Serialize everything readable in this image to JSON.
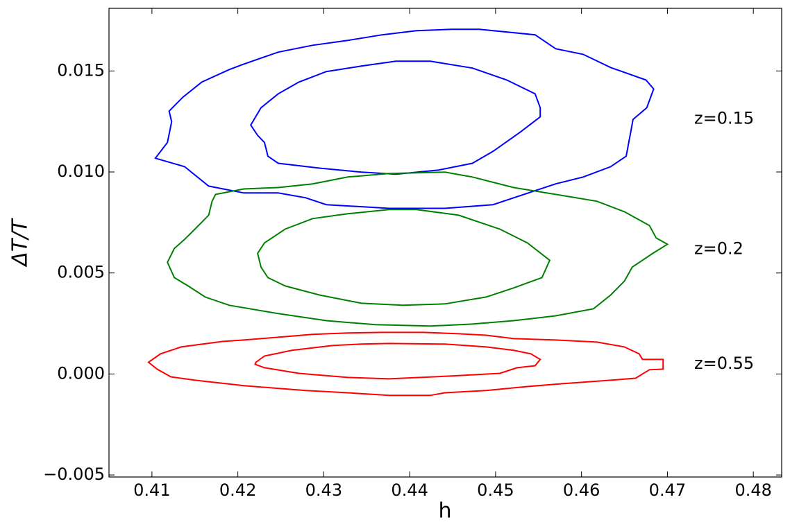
{
  "chart_data": {
    "type": "contour",
    "xlabel": "h",
    "ylabel": "ΔT/T",
    "xlim": [
      0.405,
      0.4833
    ],
    "ylim": [
      -0.0051,
      0.0181
    ],
    "xticks": [
      0.41,
      0.42,
      0.43,
      0.44,
      0.45,
      0.46,
      0.47,
      0.48
    ],
    "yticks": [
      {
        "value": -0.005,
        "label": "−0.005"
      },
      {
        "value": 0,
        "label": "0.000"
      },
      0.005,
      {
        "value": 0.01,
        "label": "0.010"
      },
      0.015
    ],
    "series": [
      {
        "name": "z=0.15",
        "color": "#0000ff",
        "contours": [
          {
            "x": [
              0.4104,
              0.4118,
              0.4123,
              0.412,
              0.4136,
              0.4158,
              0.419,
              0.4207,
              0.4247,
              0.4287,
              0.4328,
              0.4368,
              0.4408,
              0.4449,
              0.4481,
              0.4546,
              0.457,
              0.4602,
              0.4634,
              0.4675,
              0.4684,
              0.4676,
              0.466,
              0.4657,
              0.4652,
              0.4634,
              0.4602,
              0.457,
              0.4521,
              0.4497,
              0.4441,
              0.4376,
              0.4303,
              0.4279,
              0.4247,
              0.4207,
              0.4166,
              0.4138
            ],
            "y": [
              0.01068,
              0.01146,
              0.01249,
              0.01301,
              0.0137,
              0.01445,
              0.01507,
              0.01534,
              0.01593,
              0.01627,
              0.01651,
              0.01679,
              0.01699,
              0.01706,
              0.01706,
              0.01679,
              0.0161,
              0.01582,
              0.01517,
              0.01455,
              0.01411,
              0.01318,
              0.0126,
              0.01191,
              0.01078,
              0.01026,
              0.00975,
              0.00941,
              0.00872,
              0.00838,
              0.0082,
              0.0082,
              0.00838,
              0.00872,
              0.00896,
              0.00896,
              0.0093,
              0.01026
            ]
          },
          {
            "x": [
              0.4215,
              0.4227,
              0.4247,
              0.4271,
              0.4303,
              0.4344,
              0.4384,
              0.4424,
              0.4473,
              0.4513,
              0.4546,
              0.4552,
              0.4552,
              0.4529,
              0.4497,
              0.4473,
              0.4433,
              0.4384,
              0.4344,
              0.4295,
              0.4247,
              0.4235,
              0.4231,
              0.4223
            ],
            "y": [
              0.01232,
              0.01318,
              0.01387,
              0.01445,
              0.01497,
              0.01524,
              0.01548,
              0.01548,
              0.01514,
              0.01455,
              0.01387,
              0.01318,
              0.01273,
              0.01198,
              0.01102,
              0.01043,
              0.01009,
              0.00989,
              0.00999,
              0.01019,
              0.01043,
              0.01078,
              0.01146,
              0.01181
            ]
          }
        ]
      },
      {
        "name": "z=0.2",
        "color": "#008000",
        "contours": [
          {
            "x": [
              0.4118,
              0.4126,
              0.4138,
              0.415,
              0.4166,
              0.417,
              0.4174,
              0.4207,
              0.4247,
              0.4287,
              0.4328,
              0.4376,
              0.4441,
              0.4473,
              0.4521,
              0.457,
              0.4618,
              0.465,
              0.4679,
              0.4687,
              0.47,
              0.4683,
              0.4659,
              0.465,
              0.4634,
              0.4614,
              0.457,
              0.4521,
              0.4473,
              0.4424,
              0.436,
              0.4303,
              0.4247,
              0.419,
              0.4162,
              0.4142,
              0.4126
            ],
            "y": [
              0.00553,
              0.00621,
              0.00666,
              0.00717,
              0.00786,
              0.00855,
              0.00889,
              0.00916,
              0.00923,
              0.00941,
              0.00975,
              0.00992,
              0.00999,
              0.00975,
              0.00923,
              0.00889,
              0.00855,
              0.00803,
              0.00735,
              0.00673,
              0.00642,
              0.00597,
              0.00529,
              0.0046,
              0.00391,
              0.00323,
              0.00288,
              0.00264,
              0.00247,
              0.00237,
              0.00244,
              0.00264,
              0.00299,
              0.0034,
              0.00381,
              0.00436,
              0.00477
            ]
          },
          {
            "x": [
              0.4223,
              0.4231,
              0.4255,
              0.4287,
              0.4328,
              0.4376,
              0.4408,
              0.4457,
              0.4505,
              0.4537,
              0.4563,
              0.4554,
              0.4521,
              0.4489,
              0.4441,
              0.4392,
              0.4344,
              0.4295,
              0.4255,
              0.4235,
              0.4227
            ],
            "y": [
              0.00597,
              0.00649,
              0.00717,
              0.00769,
              0.00793,
              0.00814,
              0.00814,
              0.00786,
              0.00717,
              0.00649,
              0.00563,
              0.00477,
              0.00426,
              0.00381,
              0.00347,
              0.0034,
              0.0035,
              0.00391,
              0.00436,
              0.00477,
              0.00529
            ]
          }
        ]
      },
      {
        "name": "z=0.55",
        "color": "#ff0000",
        "contours": [
          {
            "x": [
              0.4096,
              0.411,
              0.4134,
              0.4182,
              0.4207,
              0.4247,
              0.4287,
              0.4328,
              0.4368,
              0.4416,
              0.4457,
              0.4489,
              0.4521,
              0.457,
              0.4618,
              0.465,
              0.4667,
              0.4671,
              0.4695,
              0.4695,
              0.4679,
              0.4663,
              0.4634,
              0.4578,
              0.4537,
              0.4489,
              0.4441,
              0.4424,
              0.4376,
              0.4328,
              0.4279,
              0.4207,
              0.415,
              0.4122,
              0.4106
            ],
            "y": [
              0.00058,
              0.001,
              0.00134,
              0.00161,
              0.00168,
              0.00182,
              0.00196,
              0.00203,
              0.00206,
              0.00206,
              0.00199,
              0.00192,
              0.00175,
              0.00168,
              0.00158,
              0.00134,
              0.001,
              0.00072,
              0.00072,
              0.00024,
              0.00021,
              -0.00021,
              -0.00031,
              -0.00048,
              -0.00062,
              -0.00082,
              -0.00093,
              -0.00106,
              -0.00106,
              -0.00093,
              -0.00082,
              -0.00058,
              -0.00031,
              -0.00014,
              0.00024
            ]
          },
          {
            "x": [
              0.4221,
              0.4231,
              0.4263,
              0.4311,
              0.4344,
              0.4376,
              0.4441,
              0.4489,
              0.4521,
              0.4541,
              0.4552,
              0.4546,
              0.4525,
              0.4505,
              0.4449,
              0.4376,
              0.4328,
              0.4271,
              0.4231,
              0.422
            ],
            "y": [
              0.00058,
              0.00089,
              0.00117,
              0.00141,
              0.00148,
              0.00151,
              0.00148,
              0.00134,
              0.00117,
              0.001,
              0.00072,
              0.00041,
              0.00031,
              3e-05,
              -0.0001,
              -0.00024,
              -0.00017,
              3e-05,
              0.00031,
              0.00048
            ]
          }
        ]
      }
    ]
  }
}
